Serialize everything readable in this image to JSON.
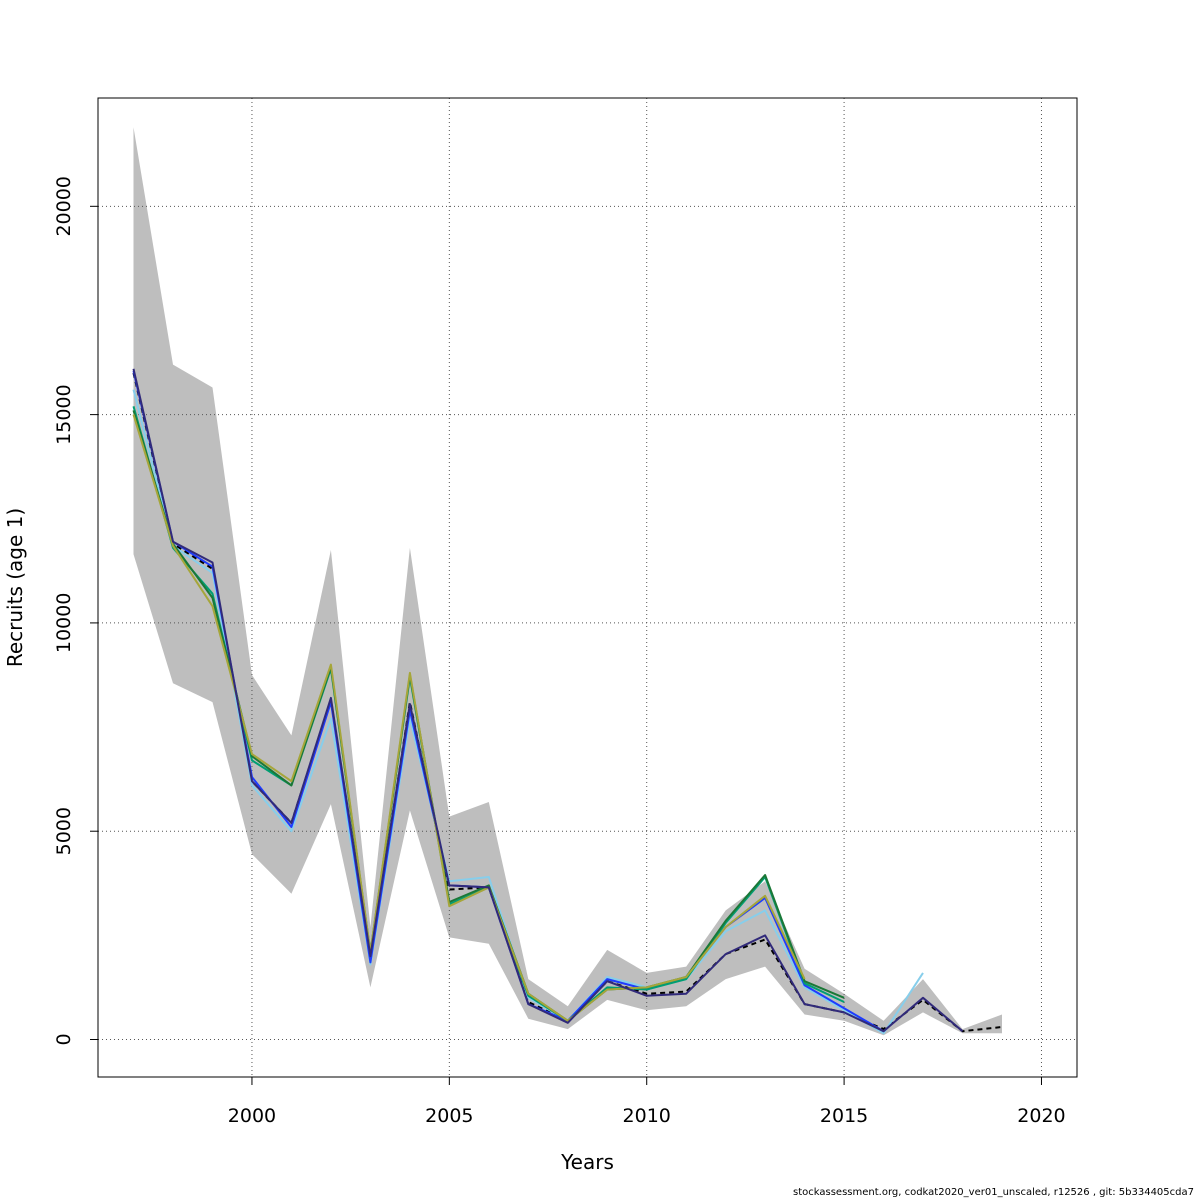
{
  "chart_data": {
    "type": "line",
    "title": "",
    "xlabel": "Years",
    "ylabel": "Recruits (age 1)",
    "xlim": [
      1996.1,
      2020.9
    ],
    "ylim": [
      -900,
      22600
    ],
    "grid": true,
    "xticks": [
      2000,
      2005,
      2010,
      2015,
      2020
    ],
    "yticks": [
      0,
      5000,
      10000,
      15000,
      20000
    ],
    "x_tick_labels": [
      "2000",
      "2005",
      "2010",
      "2015",
      "2020"
    ],
    "y_tick_labels": [
      "0",
      "5000",
      "10000",
      "15000",
      "20000"
    ],
    "confidence_band": {
      "color": "#bebebe",
      "x": [
        1997,
        1998,
        1999,
        2000,
        2001,
        2002,
        2003,
        2004,
        2005,
        2006,
        2007,
        2008,
        2009,
        2010,
        2011,
        2012,
        2013,
        2014,
        2015,
        2016,
        2017,
        2018,
        2019
      ],
      "upper": [
        21900,
        16200,
        15650,
        8750,
        7300,
        11750,
        2700,
        11800,
        5350,
        5700,
        1450,
        800,
        2150,
        1600,
        1750,
        3100,
        3800,
        1700,
        1100,
        450,
        1450,
        250,
        600
      ],
      "lower": [
        11650,
        8550,
        8100,
        4450,
        3500,
        5650,
        1250,
        5500,
        2450,
        2300,
        500,
        250,
        950,
        700,
        800,
        1450,
        1750,
        600,
        450,
        100,
        650,
        150,
        150
      ]
    },
    "series": [
      {
        "color": "#000000",
        "dashed": true,
        "x": [
          1997,
          1998,
          1999,
          2000,
          2001,
          2002,
          2003,
          2004,
          2005,
          2006,
          2007,
          2008,
          2009,
          2010,
          2011,
          2012,
          2013,
          2014,
          2015,
          2016,
          2017,
          2018,
          2019
        ],
        "values": [
          16000,
          11900,
          11300,
          6200,
          5200,
          8150,
          1900,
          8100,
          3600,
          3650,
          900,
          450,
          1400,
          1100,
          1150,
          2050,
          2400,
          850,
          650,
          250,
          950,
          200,
          300
        ]
      },
      {
        "color": "#87ceeb",
        "dashed": false,
        "x": [
          1997,
          1998,
          1999,
          2000,
          2001,
          2002,
          2003,
          2004,
          2005,
          2006,
          2007,
          2008,
          2009,
          2010,
          2011,
          2012,
          2013,
          2014,
          2015,
          2016,
          2017
        ],
        "values": [
          15600,
          11850,
          11200,
          6100,
          5000,
          7700,
          1800,
          7700,
          3800,
          3900,
          1000,
          450,
          1500,
          1250,
          1450,
          2600,
          3100,
          1250,
          700,
          150,
          1600
        ]
      },
      {
        "color": "#1e3cff",
        "dashed": false,
        "x": [
          1997,
          1998,
          1999,
          2000,
          2001,
          2002,
          2003,
          2004,
          2005,
          2006,
          2007,
          2008,
          2009,
          2010,
          2011,
          2012,
          2013,
          2014,
          2015,
          2016
        ],
        "values": [
          16050,
          11950,
          11350,
          6300,
          5100,
          8100,
          1850,
          7900,
          3700,
          3650,
          850,
          450,
          1450,
          1200,
          1500,
          2700,
          3400,
          1300,
          750,
          200
        ]
      },
      {
        "color": "#009e73",
        "dashed": false,
        "x": [
          1997,
          1998,
          1999,
          2000,
          2001,
          2002,
          2003,
          2004,
          2005,
          2006,
          2007,
          2008,
          2009,
          2010,
          2011,
          2012,
          2013,
          2014,
          2015
        ],
        "values": [
          15200,
          11800,
          10700,
          6700,
          6100,
          8900,
          2100,
          8700,
          3250,
          3650,
          1050,
          450,
          1250,
          1200,
          1450,
          2800,
          3900,
          1350,
          900
        ]
      },
      {
        "color": "#1b7837",
        "dashed": false,
        "x": [
          1997,
          1998,
          1999,
          2000,
          2001,
          2002,
          2003,
          2004,
          2005,
          2006,
          2007,
          2008,
          2009,
          2010,
          2011,
          2012,
          2013,
          2014,
          2015
        ],
        "values": [
          15100,
          11900,
          10600,
          6800,
          6100,
          8950,
          2050,
          8750,
          3300,
          3700,
          1100,
          450,
          1200,
          1250,
          1500,
          2850,
          3950,
          1400,
          1000
        ]
      },
      {
        "color": "#a6a63a",
        "dashed": false,
        "x": [
          1997,
          1998,
          1999,
          2000,
          2001,
          2002,
          2003,
          2004,
          2005,
          2006,
          2007,
          2008,
          2009,
          2010,
          2011,
          2012,
          2013,
          2014
        ],
        "values": [
          15000,
          11850,
          10400,
          6850,
          6200,
          9000,
          2100,
          8800,
          3200,
          3650,
          1100,
          450,
          1200,
          1250,
          1500,
          2700,
          3450,
          1450
        ]
      },
      {
        "color": "#312a7a",
        "dashed": false,
        "x": [
          1997,
          1998,
          1999,
          2000,
          2001,
          2002,
          2003,
          2004,
          2005,
          2006,
          2007,
          2008,
          2009,
          2010,
          2011,
          2012,
          2013,
          2014,
          2015,
          2016,
          2017,
          2018
        ],
        "values": [
          16100,
          11950,
          11450,
          6200,
          5200,
          8200,
          2000,
          8050,
          3700,
          3650,
          850,
          400,
          1400,
          1050,
          1100,
          2050,
          2500,
          850,
          650,
          200,
          1000,
          200
        ]
      }
    ]
  },
  "footer": {
    "text": "stockassessment.org, codkat2020_ver01_unscaled, r12526 , git: 5b334405cda7"
  }
}
